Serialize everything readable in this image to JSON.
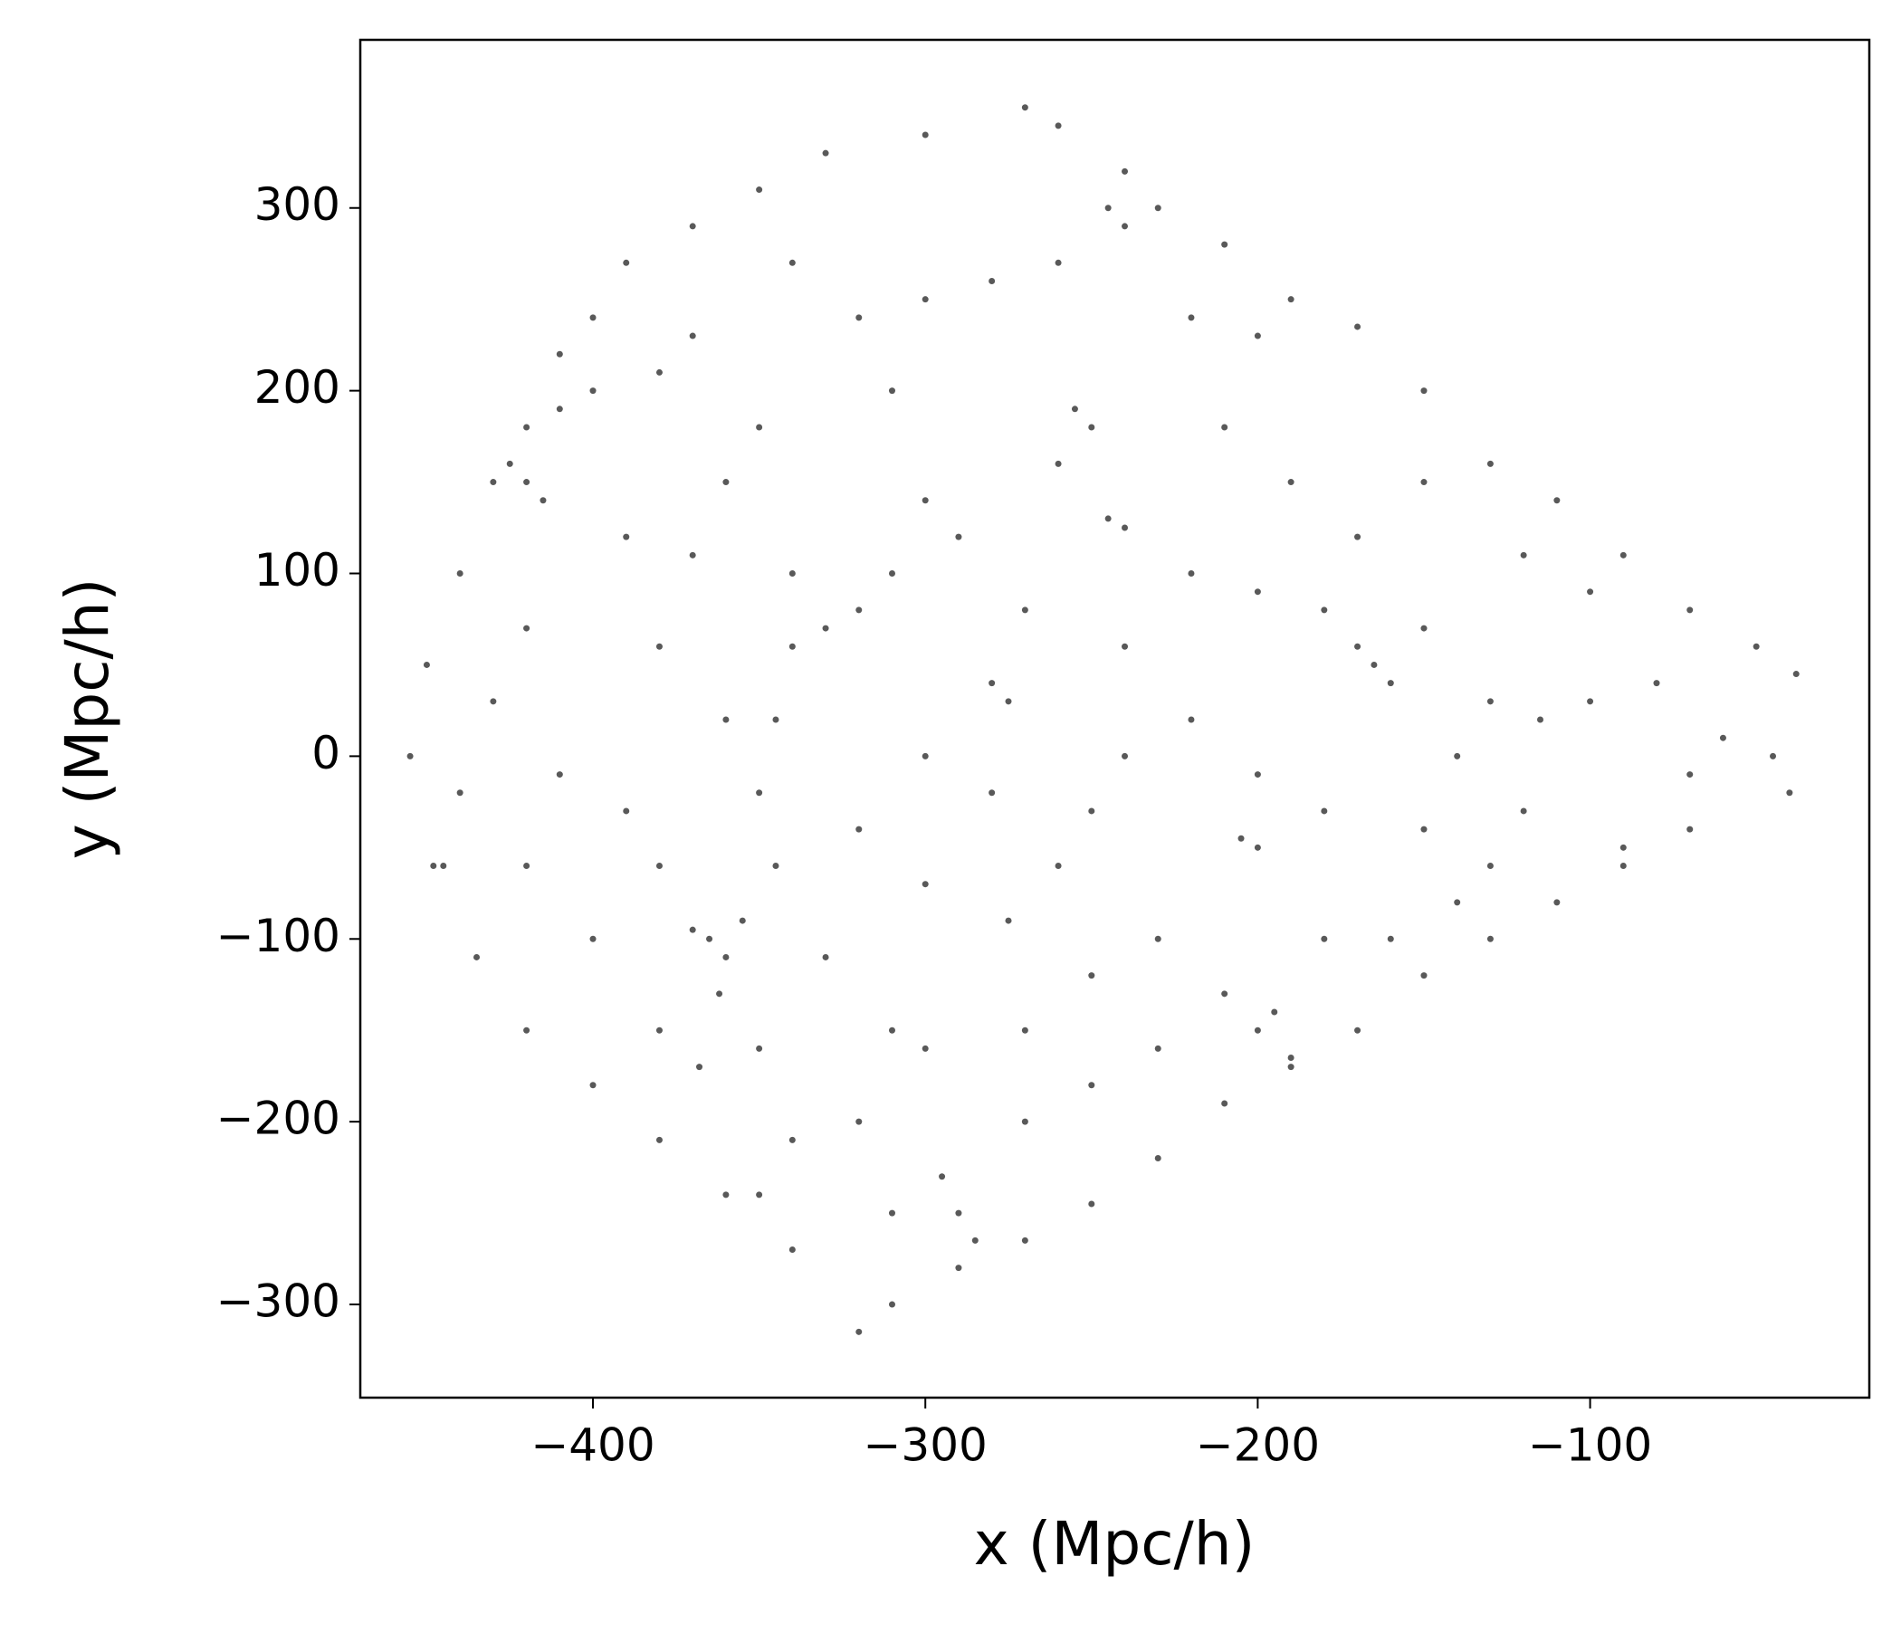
{
  "chart_data": {
    "type": "scatter",
    "xlabel": "x (Mpc/h)",
    "ylabel": "y (Mpc/h)",
    "color": "#000000",
    "xlim": [
      -470,
      -16
    ],
    "ylim": [
      -351,
      392
    ],
    "xticks": [
      {
        "value": -400,
        "label": "−400"
      },
      {
        "value": -300,
        "label": "−300"
      },
      {
        "value": -200,
        "label": "−200"
      },
      {
        "value": -100,
        "label": "−100"
      }
    ],
    "yticks": [
      {
        "value": -300,
        "label": "−300"
      },
      {
        "value": -200,
        "label": "−200"
      },
      {
        "value": -100,
        "label": "−100"
      },
      0,
      100,
      200,
      300
    ],
    "x": [
      -455,
      -450,
      -445,
      -440,
      -430,
      -420,
      -410,
      -400,
      -390,
      -370,
      -350,
      -330,
      -300,
      -270,
      -260,
      -240,
      -230,
      -210,
      -190,
      -170,
      -150,
      -130,
      -110,
      -90,
      -70,
      -50,
      -38,
      -45,
      -40,
      -70,
      -90,
      -110,
      -130,
      -150,
      -170,
      -190,
      -210,
      -230,
      -250,
      -270,
      -290,
      -310,
      -320,
      -340,
      -360,
      -380,
      -400,
      -420,
      -435,
      -448,
      -365,
      -360,
      -370,
      -355,
      -362,
      -368,
      -350,
      -345,
      -350,
      -345,
      -340,
      -330,
      -320,
      -310,
      -280,
      -275,
      -200,
      -205,
      -195,
      -200,
      -190,
      -210,
      -165,
      -160,
      -170,
      -255,
      -250,
      -245,
      -240,
      -240,
      -245,
      -290,
      -285,
      -295,
      -300,
      -310,
      -320,
      -420,
      -415,
      -425,
      -410,
      -400,
      -380,
      -390,
      -370,
      -340,
      -300,
      -260,
      -220,
      -200,
      -180,
      -150,
      -130,
      -115,
      -100,
      -80,
      -90,
      -120,
      -140,
      -160,
      -230,
      -250,
      -270,
      -260,
      -300,
      -320,
      -280,
      -240,
      -220,
      -300,
      -330,
      -400,
      -420,
      -410,
      -430,
      -420,
      -380,
      -360,
      -390,
      -380,
      -340,
      -350,
      -310,
      -270,
      -250,
      -230,
      -180,
      -200,
      -180,
      -150,
      -320,
      -300,
      -280,
      -260,
      -310,
      -350,
      -370,
      -290,
      -240,
      -270,
      -210,
      -190,
      -170,
      -150,
      -120,
      -100,
      -140,
      -60,
      -70,
      -200,
      -220,
      -340,
      -360,
      -440,
      -380,
      -250,
      -275,
      -130
    ],
    "y": [
      0,
      50,
      -60,
      100,
      150,
      180,
      220,
      240,
      270,
      290,
      310,
      330,
      340,
      355,
      345,
      320,
      300,
      280,
      250,
      235,
      200,
      160,
      140,
      110,
      80,
      60,
      45,
      0,
      -20,
      -40,
      -60,
      -80,
      -100,
      -120,
      -150,
      -170,
      -190,
      -220,
      -245,
      -265,
      -280,
      -300,
      -315,
      -270,
      -240,
      -210,
      -180,
      -150,
      -110,
      -60,
      -100,
      -110,
      -95,
      -90,
      -130,
      -170,
      -160,
      -60,
      -20,
      20,
      60,
      70,
      80,
      100,
      40,
      30,
      -50,
      -45,
      -140,
      -150,
      -165,
      -130,
      50,
      40,
      60,
      190,
      180,
      130,
      125,
      290,
      300,
      -250,
      -265,
      -230,
      -160,
      -150,
      -200,
      150,
      140,
      160,
      190,
      200,
      210,
      120,
      110,
      100,
      140,
      160,
      100,
      90,
      80,
      70,
      30,
      20,
      30,
      40,
      -50,
      -30,
      -80,
      -100,
      -100,
      -120,
      -150,
      -60,
      -70,
      -40,
      -20,
      0,
      20,
      0,
      -110,
      -100,
      -60,
      -10,
      30,
      70,
      60,
      20,
      -30,
      -150,
      -210,
      -240,
      -250,
      -200,
      -180,
      -160,
      -100,
      -10,
      -30,
      -40,
      240,
      250,
      260,
      270,
      200,
      180,
      230,
      120,
      60,
      80,
      180,
      150,
      120,
      150,
      110,
      90,
      0,
      10,
      -10,
      230,
      240,
      270,
      150,
      -20,
      -60,
      -30,
      -90,
      -60
    ]
  }
}
